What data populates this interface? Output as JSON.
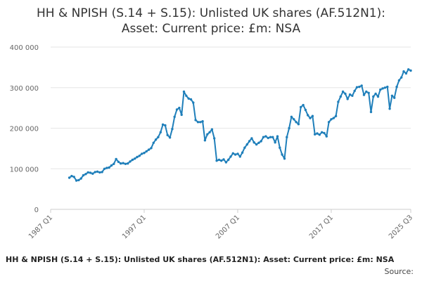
{
  "title_line1": "HH & NPISH (S.14 + S.15): Unlisted UK shares (AF.512N1):",
  "title_line2": "Asset: Current price: £m: NSA",
  "footer_title": "HH & NPISH (S.14 + S.15): Unlisted UK shares (AF.512N1): Asset: Current price: £m: NSA",
  "footer_source": "Source:",
  "chart_data": {
    "type": "line",
    "title": "HH & NPISH (S.14 + S.15): Unlisted UK shares (AF.512N1): Asset: Current price: £m: NSA",
    "xlabel": "",
    "ylabel": "",
    "x_ticks": [
      "1987 Q1",
      "1997 Q1",
      "2007 Q1",
      "2017 Q1",
      "2025 Q3"
    ],
    "y_ticks": [
      "0",
      "100 000",
      "200 000",
      "300 000",
      "400 000"
    ],
    "y_tick_values": [
      0,
      100000,
      200000,
      300000,
      400000
    ],
    "ylim": [
      0,
      400000
    ],
    "xlim": [
      1987.0,
      2025.5
    ],
    "grid": "horizontal",
    "legend": "none",
    "colors": {
      "line": "#1f7fba",
      "grid": "#e6e6e6",
      "axis": "#cccccc"
    },
    "series": [
      {
        "values": [
          [
            1989.0,
            78000
          ],
          [
            1989.25,
            82000
          ],
          [
            1989.5,
            80000
          ],
          [
            1989.75,
            71000
          ],
          [
            1990.0,
            72000
          ],
          [
            1990.25,
            76000
          ],
          [
            1990.5,
            84000
          ],
          [
            1990.75,
            87000
          ],
          [
            1991.0,
            91000
          ],
          [
            1991.25,
            90000
          ],
          [
            1991.5,
            88000
          ],
          [
            1991.75,
            92000
          ],
          [
            1992.0,
            93000
          ],
          [
            1992.25,
            91000
          ],
          [
            1992.5,
            92000
          ],
          [
            1992.75,
            100000
          ],
          [
            1993.0,
            102000
          ],
          [
            1993.25,
            103000
          ],
          [
            1993.5,
            108000
          ],
          [
            1993.75,
            112000
          ],
          [
            1994.0,
            124000
          ],
          [
            1994.25,
            117000
          ],
          [
            1994.5,
            113000
          ],
          [
            1994.75,
            114000
          ],
          [
            1995.0,
            112000
          ],
          [
            1995.25,
            113000
          ],
          [
            1995.5,
            118000
          ],
          [
            1995.75,
            122000
          ],
          [
            1996.0,
            125000
          ],
          [
            1996.25,
            129000
          ],
          [
            1996.5,
            132000
          ],
          [
            1996.75,
            137000
          ],
          [
            1997.0,
            139000
          ],
          [
            1997.25,
            143000
          ],
          [
            1997.5,
            147000
          ],
          [
            1997.75,
            151000
          ],
          [
            1998.0,
            164000
          ],
          [
            1998.25,
            172000
          ],
          [
            1998.5,
            178000
          ],
          [
            1998.75,
            190000
          ],
          [
            1999.0,
            209000
          ],
          [
            1999.25,
            207000
          ],
          [
            1999.5,
            183000
          ],
          [
            1999.75,
            177000
          ],
          [
            2000.0,
            198000
          ],
          [
            2000.25,
            228000
          ],
          [
            2000.5,
            246000
          ],
          [
            2000.75,
            250000
          ],
          [
            2001.0,
            233000
          ],
          [
            2001.25,
            290000
          ],
          [
            2001.5,
            280000
          ],
          [
            2001.75,
            273000
          ],
          [
            2002.0,
            271000
          ],
          [
            2002.25,
            263000
          ],
          [
            2002.5,
            220000
          ],
          [
            2002.75,
            215000
          ],
          [
            2003.0,
            215000
          ],
          [
            2003.25,
            217000
          ],
          [
            2003.5,
            170000
          ],
          [
            2003.75,
            185000
          ],
          [
            2004.0,
            190000
          ],
          [
            2004.25,
            197000
          ],
          [
            2004.5,
            175000
          ],
          [
            2004.75,
            120000
          ],
          [
            2005.0,
            122000
          ],
          [
            2005.25,
            120000
          ],
          [
            2005.5,
            123000
          ],
          [
            2005.75,
            116000
          ],
          [
            2006.0,
            122000
          ],
          [
            2006.25,
            130000
          ],
          [
            2006.5,
            138000
          ],
          [
            2006.75,
            135000
          ],
          [
            2007.0,
            137000
          ],
          [
            2007.25,
            130000
          ],
          [
            2007.5,
            140000
          ],
          [
            2007.75,
            152000
          ],
          [
            2008.0,
            160000
          ],
          [
            2008.25,
            168000
          ],
          [
            2008.5,
            175000
          ],
          [
            2008.75,
            165000
          ],
          [
            2009.0,
            160000
          ],
          [
            2009.25,
            164000
          ],
          [
            2009.5,
            168000
          ],
          [
            2009.75,
            178000
          ],
          [
            2010.0,
            180000
          ],
          [
            2010.25,
            176000
          ],
          [
            2010.5,
            178000
          ],
          [
            2010.75,
            178000
          ],
          [
            2011.0,
            165000
          ],
          [
            2011.25,
            180000
          ],
          [
            2011.5,
            152000
          ],
          [
            2011.75,
            135000
          ],
          [
            2012.0,
            125000
          ],
          [
            2012.25,
            178000
          ],
          [
            2012.5,
            200000
          ],
          [
            2012.75,
            228000
          ],
          [
            2013.0,
            222000
          ],
          [
            2013.25,
            215000
          ],
          [
            2013.5,
            210000
          ],
          [
            2013.75,
            252000
          ],
          [
            2014.0,
            257000
          ],
          [
            2014.25,
            245000
          ],
          [
            2014.5,
            232000
          ],
          [
            2014.75,
            225000
          ],
          [
            2015.0,
            230000
          ],
          [
            2015.25,
            185000
          ],
          [
            2015.5,
            187000
          ],
          [
            2015.75,
            184000
          ],
          [
            2016.0,
            190000
          ],
          [
            2016.25,
            188000
          ],
          [
            2016.5,
            180000
          ],
          [
            2016.75,
            215000
          ],
          [
            2017.0,
            222000
          ],
          [
            2017.25,
            225000
          ],
          [
            2017.5,
            230000
          ],
          [
            2017.75,
            265000
          ],
          [
            2018.0,
            278000
          ],
          [
            2018.25,
            290000
          ],
          [
            2018.5,
            285000
          ],
          [
            2018.75,
            272000
          ],
          [
            2019.0,
            283000
          ],
          [
            2019.25,
            280000
          ],
          [
            2019.5,
            292000
          ],
          [
            2019.75,
            301000
          ],
          [
            2020.0,
            302000
          ],
          [
            2020.25,
            305000
          ],
          [
            2020.5,
            282000
          ],
          [
            2020.75,
            290000
          ],
          [
            2021.0,
            287000
          ],
          [
            2021.25,
            240000
          ],
          [
            2021.5,
            278000
          ],
          [
            2021.75,
            285000
          ],
          [
            2022.0,
            278000
          ],
          [
            2022.25,
            295000
          ],
          [
            2022.5,
            298000
          ],
          [
            2022.75,
            300000
          ],
          [
            2023.0,
            302000
          ],
          [
            2023.25,
            248000
          ],
          [
            2023.5,
            280000
          ],
          [
            2023.75,
            275000
          ],
          [
            2024.0,
            302000
          ],
          [
            2024.25,
            318000
          ],
          [
            2024.5,
            325000
          ],
          [
            2024.75,
            340000
          ],
          [
            2025.0,
            335000
          ],
          [
            2025.25,
            345000
          ],
          [
            2025.5,
            342000
          ]
        ]
      }
    ]
  }
}
